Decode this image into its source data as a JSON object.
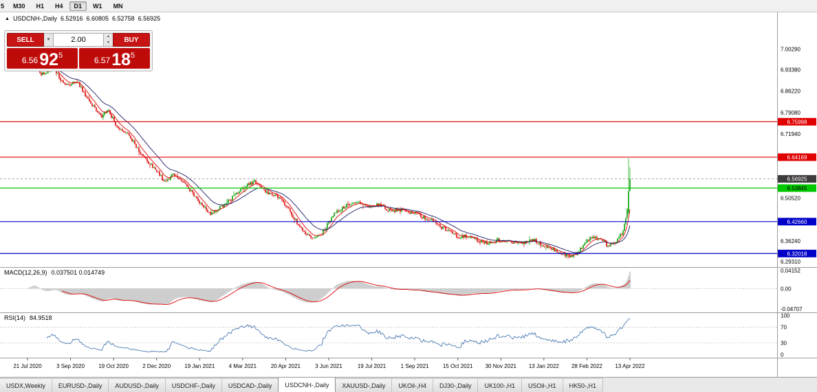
{
  "toolbar": {
    "partial": "5",
    "buttons": [
      "M30",
      "H1",
      "H4",
      "D1",
      "W1",
      "MN"
    ],
    "active": "D1"
  },
  "chart_header": {
    "marker": "▲",
    "symbol": "USDCNH-,Daily",
    "open": "6.52916",
    "high": "6.60805",
    "low": "6.52758",
    "close": "6.56925"
  },
  "trade_panel": {
    "sell_label": "SELL",
    "buy_label": "BUY",
    "volume": "2.00",
    "sell_price": {
      "big": "6.56",
      "huge": "92",
      "sup": "5"
    },
    "buy_price": {
      "big": "6.57",
      "huge": "18",
      "sup": "5"
    }
  },
  "chart_data": {
    "type": "candlestick",
    "symbol": "USDCNH-,Daily",
    "timeframe": "Daily",
    "ohlc": {
      "open": 6.52916,
      "high": 6.60805,
      "low": 6.52758,
      "close": 6.56925
    },
    "y_range": [
      6.275,
      7.125
    ],
    "price_axis_ticks": [
      "7.00290",
      "6.93380",
      "6.86220",
      "6.79080",
      "6.71940",
      "6.50520",
      "6.36240",
      "6.29310"
    ],
    "horizontal_lines": [
      {
        "price": 6.75998,
        "label": "6.75998",
        "color": "#e00000",
        "text_color": "#ffffff"
      },
      {
        "price": 6.64169,
        "label": "6.64169",
        "color": "#e00000",
        "text_color": "#ffffff"
      },
      {
        "price": 6.53845,
        "label": "6.53845",
        "color": "#00c800",
        "text_color": "#000000"
      },
      {
        "price": 6.4266,
        "label": "6.42660",
        "color": "#0000c8",
        "text_color": "#ffffff"
      },
      {
        "price": 6.32018,
        "label": "6.32018",
        "color": "#0000c8",
        "text_color": "#ffffff"
      }
    ],
    "current_price": {
      "value": 6.56925,
      "label": "6.56925",
      "bg": "#3c3c3c",
      "text_color": "#ffffff"
    },
    "x_dates": [
      "21 Jul 2020",
      "3 Sep 2020",
      "19 Oct 2020",
      "2 Dec 2020",
      "19 Jan 2021",
      "4 Mar 2021",
      "20 Apr 2021",
      "3 Jun 2021",
      "19 Jul 2021",
      "1 Sep 2021",
      "15 Oct 2021",
      "30 Nov 2021",
      "13 Jan 2022",
      "28 Feb 2022",
      "13 Apr 2022"
    ],
    "candle_count": 440,
    "noise_seed": 1337,
    "trend_keypoints": [
      [
        0,
        6.945
      ],
      [
        0.012,
        6.975
      ],
      [
        0.025,
        6.915
      ],
      [
        0.045,
        6.935
      ],
      [
        0.065,
        6.88
      ],
      [
        0.085,
        6.895
      ],
      [
        0.105,
        6.83
      ],
      [
        0.125,
        6.775
      ],
      [
        0.135,
        6.8
      ],
      [
        0.15,
        6.745
      ],
      [
        0.17,
        6.715
      ],
      [
        0.19,
        6.65
      ],
      [
        0.21,
        6.61
      ],
      [
        0.23,
        6.565
      ],
      [
        0.245,
        6.59
      ],
      [
        0.265,
        6.545
      ],
      [
        0.285,
        6.495
      ],
      [
        0.305,
        6.445
      ],
      [
        0.32,
        6.47
      ],
      [
        0.34,
        6.505
      ],
      [
        0.36,
        6.545
      ],
      [
        0.378,
        6.562
      ],
      [
        0.395,
        6.53
      ],
      [
        0.415,
        6.51
      ],
      [
        0.435,
        6.465
      ],
      [
        0.455,
        6.4
      ],
      [
        0.473,
        6.368
      ],
      [
        0.49,
        6.39
      ],
      [
        0.51,
        6.455
      ],
      [
        0.53,
        6.48
      ],
      [
        0.55,
        6.497
      ],
      [
        0.565,
        6.475
      ],
      [
        0.585,
        6.48
      ],
      [
        0.605,
        6.462
      ],
      [
        0.625,
        6.472
      ],
      [
        0.645,
        6.455
      ],
      [
        0.665,
        6.438
      ],
      [
        0.685,
        6.41
      ],
      [
        0.7,
        6.39
      ],
      [
        0.715,
        6.372
      ],
      [
        0.73,
        6.38
      ],
      [
        0.748,
        6.365
      ],
      [
        0.765,
        6.358
      ],
      [
        0.782,
        6.368
      ],
      [
        0.8,
        6.36
      ],
      [
        0.818,
        6.352
      ],
      [
        0.838,
        6.365
      ],
      [
        0.855,
        6.345
      ],
      [
        0.872,
        6.335
      ],
      [
        0.89,
        6.322
      ],
      [
        0.902,
        6.312
      ],
      [
        0.915,
        6.328
      ],
      [
        0.932,
        6.368
      ],
      [
        0.948,
        6.372
      ],
      [
        0.962,
        6.345
      ],
      [
        0.976,
        6.352
      ],
      [
        0.988,
        6.39
      ],
      [
        0.996,
        6.47
      ],
      [
        1,
        6.53
      ]
    ],
    "last_candles": [
      {
        "open": 6.455,
        "high": 6.638,
        "low": 6.45,
        "close": 6.528
      },
      {
        "open": 6.52916,
        "high": 6.60805,
        "low": 6.52758,
        "close": 6.56925
      }
    ],
    "colors": {
      "bull": "#00a000",
      "bear": "#dd0000",
      "ma_fast": "#dd0000",
      "ma_slow": "#1a1a66"
    },
    "moving_averages": [
      {
        "period": 8,
        "color": "#dd0000"
      },
      {
        "period": 21,
        "color": "#1a1a66"
      }
    ],
    "indicators": {
      "macd": {
        "label": "MACD(12,26,9)",
        "values": "0.037501 0.014749",
        "main": 0.037501,
        "signal": 0.014749,
        "axis_labels": [
          "0.04152",
          "0.00",
          "-0.04707"
        ],
        "hist_color": "#b8b8b8",
        "signal_color": "#dd0000",
        "range": [
          -0.055,
          0.048
        ]
      },
      "rsi": {
        "label": "RSI(14)",
        "value": "84.9518",
        "axis_labels": [
          100,
          70,
          30,
          0
        ],
        "levels": [
          70,
          30
        ],
        "line_color": "#4878b0",
        "range": [
          -8,
          106
        ]
      }
    }
  },
  "tabs": {
    "active": "USDCNH-,Daily",
    "items": [
      "USDX,Weekly",
      "EURUSD-,Daily",
      "AUDUSD-,Daily",
      "USDCHF-,Daily",
      "USDCAD-,Daily",
      "USDCNH-,Daily",
      "XAUUSD-,Daily",
      "UKOil-,H4",
      "DJ30-,Daily",
      "UK100-,H1",
      "USOil-,H1",
      "HK50-,H1"
    ]
  }
}
